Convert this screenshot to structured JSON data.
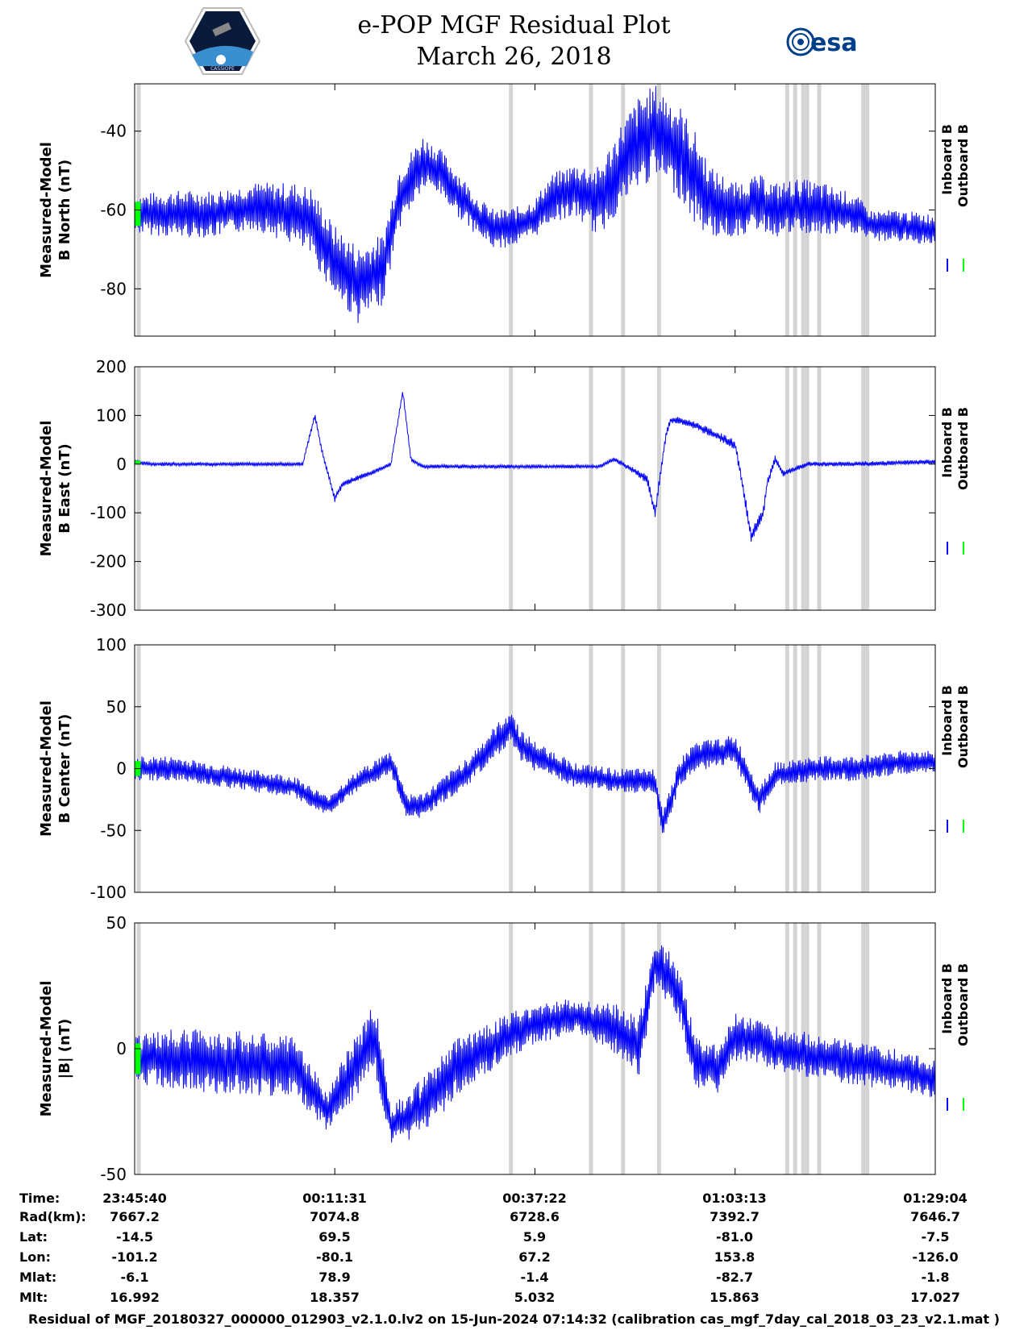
{
  "title": "e-POP MGF Residual Plot",
  "date": "March 26, 2018",
  "logos": {
    "left": "CASSIOPE",
    "right": "esa"
  },
  "chart_data": [
    {
      "type": "line",
      "ylabel_line1": "Measured-Model",
      "ylabel_line2": "B North (nT)",
      "ylim": [
        -92,
        -28
      ],
      "yticks": [
        -40,
        -60,
        -80
      ],
      "legend": [
        "Inboard B",
        "Outboard B"
      ],
      "series": [
        {
          "name": "Inboard B",
          "color": "#0000ff",
          "x": [
            0,
            0.05,
            0.1,
            0.15,
            0.2,
            0.22,
            0.25,
            0.28,
            0.31,
            0.33,
            0.36,
            0.38,
            0.4,
            0.43,
            0.45,
            0.48,
            0.5,
            0.52,
            0.55,
            0.58,
            0.61,
            0.63,
            0.65,
            0.68,
            0.7,
            0.72,
            0.75,
            0.78,
            0.8,
            0.83,
            0.86,
            0.9,
            0.92,
            0.95,
            1.0
          ],
          "y": [
            -61,
            -61,
            -61,
            -59,
            -61,
            -63,
            -73,
            -79,
            -75,
            -57,
            -48,
            -50,
            -55,
            -62,
            -65,
            -64,
            -62,
            -57,
            -55,
            -58,
            -48,
            -43,
            -40,
            -45,
            -52,
            -58,
            -60,
            -58,
            -60,
            -59,
            -60,
            -61,
            -64,
            -64,
            -65
          ],
          "amp": [
            5,
            6,
            6,
            6,
            8,
            9,
            9,
            10,
            9,
            8,
            7,
            6,
            6,
            5,
            5,
            5,
            5,
            6,
            7,
            9,
            11,
            12,
            12,
            12,
            12,
            9,
            7,
            7,
            7,
            7,
            7,
            5,
            4,
            4,
            4
          ]
        },
        {
          "name": "Outboard B",
          "color": "#00ff00"
        }
      ]
    },
    {
      "type": "line",
      "ylabel_line1": "Measured-Model",
      "ylabel_line2": "B East (nT)",
      "ylim": [
        -300,
        200
      ],
      "yticks": [
        200,
        100,
        0,
        -100,
        -200,
        -300
      ],
      "legend": [
        "Inboard B",
        "Outboard B"
      ],
      "series": [
        {
          "name": "Inboard B",
          "color": "#0000ff",
          "x": [
            0,
            0.02,
            0.1,
            0.2,
            0.21,
            0.225,
            0.235,
            0.25,
            0.26,
            0.3,
            0.32,
            0.335,
            0.345,
            0.36,
            0.4,
            0.5,
            0.58,
            0.6,
            0.62,
            0.63,
            0.64,
            0.65,
            0.66,
            0.665,
            0.67,
            0.68,
            0.7,
            0.75,
            0.76,
            0.77,
            0.785,
            0.79,
            0.8,
            0.81,
            0.84,
            0.9,
            1.0
          ],
          "y": [
            5,
            0,
            0,
            0,
            0,
            100,
            20,
            -70,
            -40,
            -15,
            0,
            150,
            10,
            -5,
            -5,
            -5,
            -5,
            10,
            -10,
            -20,
            -30,
            -100,
            20,
            70,
            90,
            90,
            80,
            40,
            -50,
            -150,
            -100,
            -40,
            10,
            -20,
            0,
            0,
            5
          ],
          "amp": [
            5,
            4,
            4,
            4,
            4,
            6,
            6,
            8,
            6,
            5,
            4,
            6,
            5,
            4,
            4,
            4,
            4,
            5,
            6,
            8,
            10,
            12,
            10,
            8,
            7,
            7,
            8,
            10,
            12,
            14,
            12,
            10,
            8,
            6,
            5,
            5,
            5
          ]
        },
        {
          "name": "Outboard B",
          "color": "#00ff00"
        }
      ]
    },
    {
      "type": "line",
      "ylabel_line1": "Measured-Model",
      "ylabel_line2": "B Center (nT)",
      "ylim": [
        -100,
        100
      ],
      "yticks": [
        100,
        50,
        0,
        -50,
        -100
      ],
      "legend": [
        "Inboard B",
        "Outboard B"
      ],
      "series": [
        {
          "name": "Inboard B",
          "color": "#0000ff",
          "x": [
            0,
            0.05,
            0.1,
            0.15,
            0.2,
            0.24,
            0.28,
            0.32,
            0.34,
            0.36,
            0.38,
            0.42,
            0.47,
            0.48,
            0.5,
            0.55,
            0.6,
            0.65,
            0.66,
            0.67,
            0.68,
            0.7,
            0.75,
            0.78,
            0.8,
            0.85,
            0.9,
            0.95,
            1.0
          ],
          "y": [
            0,
            0,
            -5,
            -10,
            -15,
            -30,
            -10,
            5,
            -30,
            -30,
            -20,
            0,
            35,
            20,
            10,
            -5,
            -10,
            -10,
            -45,
            -25,
            -5,
            10,
            15,
            -25,
            -5,
            0,
            0,
            5,
            5
          ],
          "amp": [
            10,
            10,
            9,
            9,
            9,
            8,
            9,
            10,
            10,
            10,
            10,
            12,
            14,
            14,
            12,
            10,
            10,
            10,
            14,
            12,
            12,
            12,
            12,
            12,
            10,
            10,
            10,
            10,
            10
          ]
        },
        {
          "name": "Outboard B",
          "color": "#00ff00"
        }
      ]
    },
    {
      "type": "line",
      "ylabel_line1": "Measured-Model",
      "ylabel_line2": "|B| (nT)",
      "ylim": [
        -50,
        50
      ],
      "yticks": [
        50,
        0,
        -50
      ],
      "legend": [
        "Inboard B",
        "Outboard B"
      ],
      "series": [
        {
          "name": "Inboard B",
          "color": "#0000ff",
          "x": [
            0,
            0.05,
            0.1,
            0.2,
            0.24,
            0.27,
            0.3,
            0.32,
            0.34,
            0.37,
            0.4,
            0.45,
            0.5,
            0.55,
            0.6,
            0.63,
            0.65,
            0.68,
            0.7,
            0.73,
            0.75,
            0.78,
            0.8,
            0.85,
            0.9,
            0.95,
            1.0
          ],
          "y": [
            -4,
            -4,
            -5,
            -7,
            -25,
            -10,
            5,
            -30,
            -28,
            -20,
            -8,
            2,
            10,
            13,
            8,
            0,
            35,
            22,
            -5,
            -8,
            5,
            3,
            0,
            -3,
            -6,
            -8,
            -12
          ],
          "amp": [
            10,
            12,
            13,
            12,
            8,
            12,
            15,
            8,
            10,
            12,
            12,
            10,
            8,
            7,
            10,
            12,
            10,
            12,
            10,
            10,
            10,
            9,
            9,
            9,
            9,
            8,
            8
          ]
        },
        {
          "name": "Outboard B",
          "color": "#00ff00"
        }
      ]
    }
  ],
  "data_gaps_x": [
    0.005,
    0.47,
    0.57,
    0.61,
    0.655,
    0.815,
    0.825,
    0.835,
    0.84,
    0.855,
    0.91,
    0.915
  ],
  "table": {
    "row_labels": [
      "Time:",
      "Rad(km):",
      "Lat:",
      "Lon:",
      "Mlat:",
      "Mlt:"
    ],
    "columns": [
      {
        "values": [
          "23:45:40",
          "7667.2",
          "-14.5",
          "-101.2",
          "-6.1",
          "16.992"
        ]
      },
      {
        "values": [
          "00:11:31",
          "7074.8",
          "69.5",
          "-80.1",
          "78.9",
          "18.357"
        ]
      },
      {
        "values": [
          "00:37:22",
          "6728.6",
          "5.9",
          "67.2",
          "-1.4",
          "5.032"
        ]
      },
      {
        "values": [
          "01:03:13",
          "7392.7",
          "-81.0",
          "153.8",
          "-82.7",
          "15.863"
        ]
      },
      {
        "values": [
          "01:29:04",
          "7646.7",
          "-7.5",
          "-126.0",
          "-1.8",
          "17.027"
        ]
      }
    ]
  },
  "footer": "Residual of MGF_20180327_000000_012903_v2.1.0.lv2 on 15-Jun-2024 07:14:32 (calibration cas_mgf_7day_cal_2018_03_23_v2.1.mat )"
}
